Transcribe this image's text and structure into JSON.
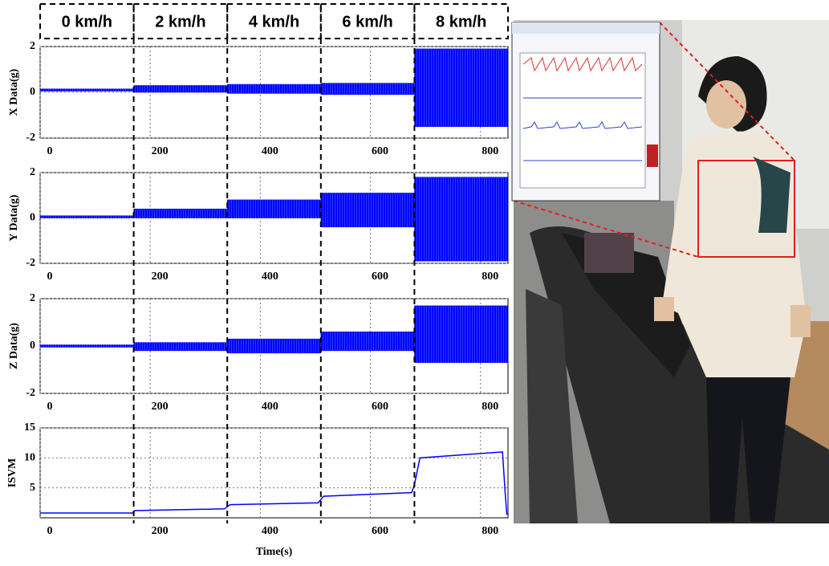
{
  "speed_header": {
    "labels": [
      "0 km/h",
      "2 km/h",
      "4 km/h",
      "6 km/h",
      "8 km/h"
    ]
  },
  "chart_data": [
    {
      "type": "band",
      "y_label": "X Data(g)",
      "color": "#0000ff",
      "segments": [
        0,
        170,
        340,
        510,
        680,
        850
      ],
      "upper": [
        0.15,
        0.3,
        0.35,
        0.4,
        1.9
      ],
      "lower": [
        0.05,
        0.0,
        -0.05,
        -0.1,
        -1.5
      ],
      "xlim": [
        0,
        850
      ],
      "xticks": [
        0,
        200,
        400,
        600,
        800
      ],
      "ylim": [
        -2,
        2
      ],
      "yticks": [
        -2,
        0,
        2
      ],
      "grid": true
    },
    {
      "type": "band",
      "y_label": "Y Data(g)",
      "color": "#0000ff",
      "segments": [
        0,
        170,
        340,
        510,
        680,
        850
      ],
      "upper": [
        0.1,
        0.4,
        0.8,
        1.1,
        1.8
      ],
      "lower": [
        0.0,
        0.0,
        0.0,
        -0.4,
        -1.9
      ],
      "xlim": [
        0,
        850
      ],
      "xticks": [
        0,
        200,
        400,
        600,
        800
      ],
      "ylim": [
        -2,
        2
      ],
      "yticks": [
        -2,
        0,
        2
      ],
      "grid": true
    },
    {
      "type": "band",
      "y_label": "Z Data(g)",
      "color": "#0000ff",
      "segments": [
        0,
        170,
        340,
        510,
        680,
        850
      ],
      "upper": [
        0.05,
        0.15,
        0.3,
        0.6,
        1.7
      ],
      "lower": [
        -0.05,
        -0.2,
        -0.3,
        -0.2,
        -0.7
      ],
      "xlim": [
        0,
        850
      ],
      "xticks": [
        0,
        200,
        400,
        600,
        800
      ],
      "ylim": [
        -2,
        2
      ],
      "yticks": [
        -2,
        0,
        2
      ],
      "grid": true
    },
    {
      "type": "line",
      "y_label": "ISVM",
      "x_label": "Time(s)",
      "color": "#0000ff",
      "x": [
        0,
        168,
        172,
        335,
        345,
        505,
        515,
        675,
        680,
        690,
        840,
        845,
        848
      ],
      "values": [
        0.8,
        0.8,
        1.2,
        1.5,
        2.2,
        2.5,
        3.6,
        4.2,
        5.5,
        10.0,
        11.0,
        4.0,
        0.5
      ],
      "xlim": [
        0,
        850
      ],
      "xticks": [
        0,
        200,
        400,
        600,
        800
      ],
      "ylim": [
        0,
        15
      ],
      "yticks": [
        5,
        10,
        15
      ],
      "grid": true
    }
  ]
}
